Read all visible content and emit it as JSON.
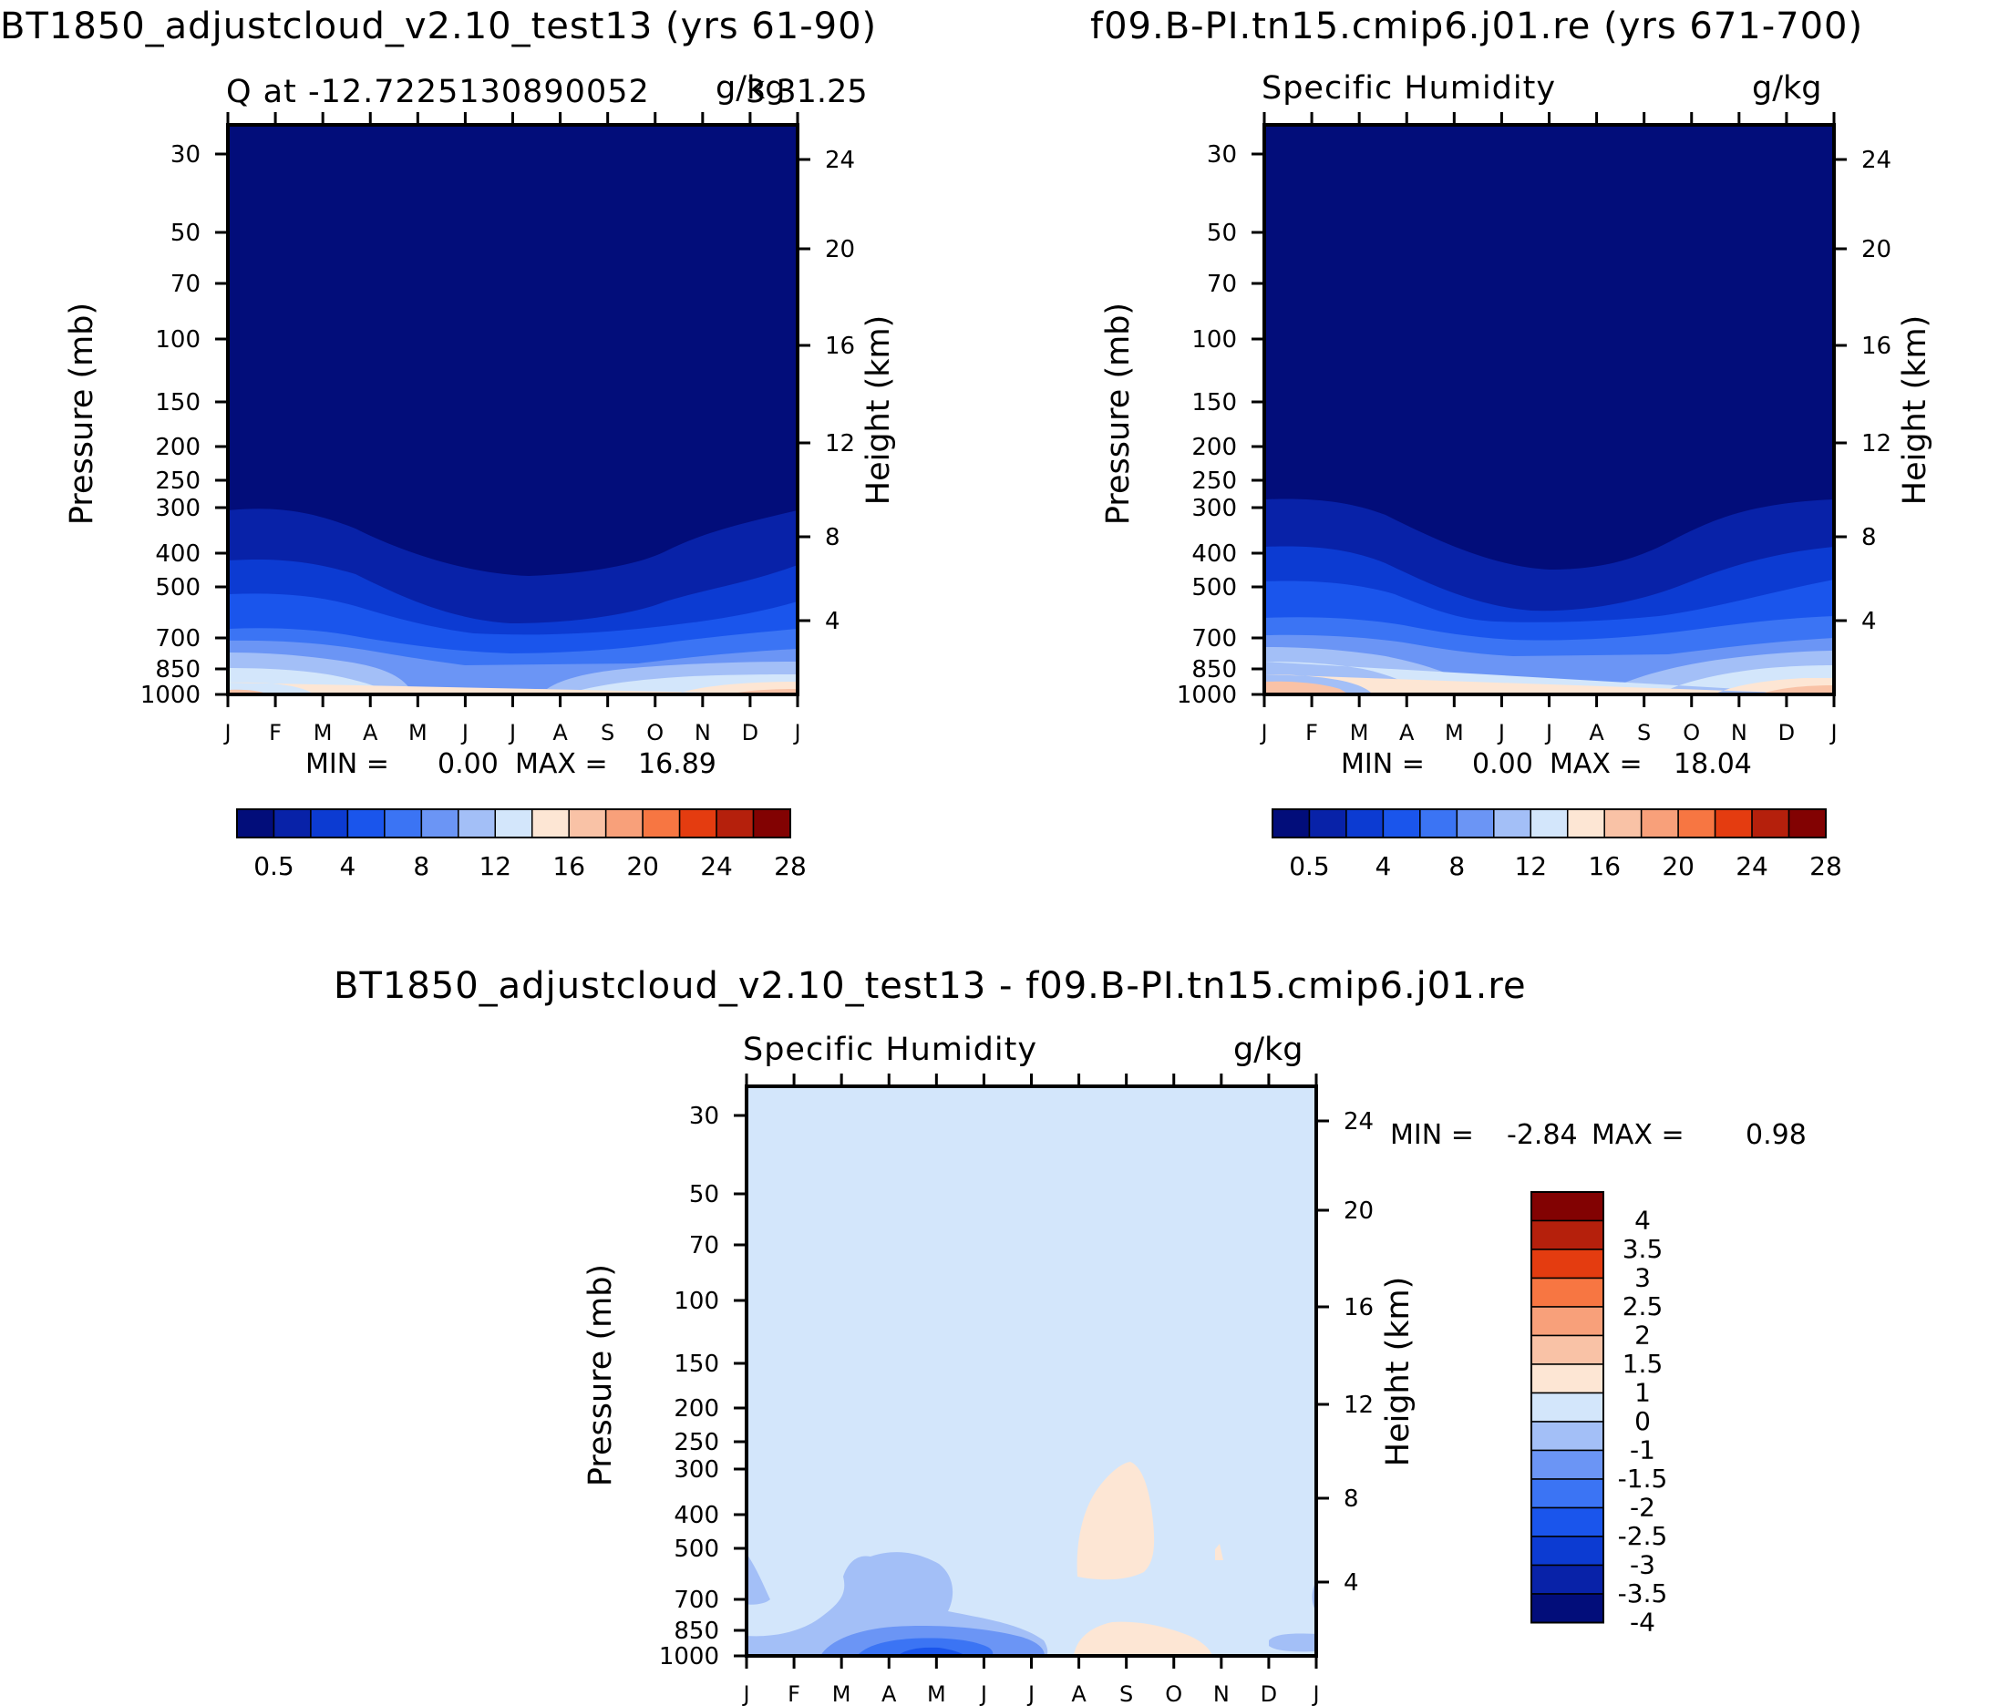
{
  "chart_data": [
    {
      "type": "heatmap",
      "panel_title": "BT1850_adjustcloud_v2.10_test13 (yrs 61-90)",
      "left_label": "Q at -12.722513089005 23 g/kg 31.25",
      "left_label_overlap": "g/kg",
      "left_label_main": "Q at -12.7225130890052",
      "left_label_tail": "3 31.25",
      "units": "g/kg",
      "ylabel": "Pressure (mb)",
      "y2label": "Height (km)",
      "xticks": [
        "J",
        "F",
        "M",
        "A",
        "M",
        "J",
        "J",
        "A",
        "S",
        "O",
        "N",
        "D",
        "J"
      ],
      "pressure_ticks": [
        "30",
        "50",
        "70",
        "100",
        "150",
        "200",
        "250",
        "300",
        "400",
        "500",
        "700",
        "850",
        "1000"
      ],
      "height_ticks": [
        "24",
        "20",
        "16",
        "12",
        "8",
        "4"
      ],
      "min_label": "MIN =",
      "min_value": "0.00",
      "max_label": "MAX =",
      "max_value": "16.89",
      "colorbar_labels": [
        "0.5",
        "4",
        "8",
        "12",
        "16",
        "20",
        "24",
        "28"
      ],
      "contour_levels": [
        0.5,
        2,
        4,
        6,
        8,
        10,
        12,
        14,
        16,
        18,
        20,
        22,
        24,
        26,
        28
      ],
      "seasonal_boundary_pressure_mb": {
        "months": [
          "J",
          "F",
          "M",
          "A",
          "M",
          "J",
          "J",
          "A",
          "S",
          "O",
          "N",
          "D",
          "J"
        ],
        "q_0p5": [
          310,
          310,
          330,
          390,
          440,
          470,
          480,
          460,
          450,
          400,
          340,
          320,
          310
        ],
        "q_2": [
          430,
          430,
          460,
          520,
          600,
          670,
          680,
          650,
          620,
          540,
          470,
          440,
          430
        ]
      }
    },
    {
      "type": "heatmap",
      "panel_title": "f09.B-PI.tn15.cmip6.j01.re (yrs 671-700)",
      "left_label": "Specific Humidity",
      "units": "g/kg",
      "ylabel": "Pressure (mb)",
      "y2label": "Height (km)",
      "xticks": [
        "J",
        "F",
        "M",
        "A",
        "M",
        "J",
        "J",
        "A",
        "S",
        "O",
        "N",
        "D",
        "J"
      ],
      "pressure_ticks": [
        "30",
        "50",
        "70",
        "100",
        "150",
        "200",
        "250",
        "300",
        "400",
        "500",
        "700",
        "850",
        "1000"
      ],
      "height_ticks": [
        "24",
        "20",
        "16",
        "12",
        "8",
        "4"
      ],
      "min_label": "MIN =",
      "min_value": "0.00",
      "max_label": "MAX =",
      "max_value": "18.04",
      "colorbar_labels": [
        "0.5",
        "4",
        "8",
        "12",
        "16",
        "20",
        "24",
        "28"
      ],
      "contour_levels": [
        0.5,
        2,
        4,
        6,
        8,
        10,
        12,
        14,
        16,
        18,
        20,
        22,
        24,
        26,
        28
      ]
    },
    {
      "type": "heatmap",
      "panel_title": "BT1850_adjustcloud_v2.10_test13 - f09.B-PI.tn15.cmip6.j01.re",
      "left_label": "Specific Humidity",
      "units": "g/kg",
      "ylabel": "Pressure (mb)",
      "y2label": "Height (km)",
      "xticks": [
        "J",
        "F",
        "M",
        "A",
        "M",
        "J",
        "J",
        "A",
        "S",
        "O",
        "N",
        "D",
        "J"
      ],
      "pressure_ticks": [
        "30",
        "50",
        "70",
        "100",
        "150",
        "200",
        "250",
        "300",
        "400",
        "500",
        "700",
        "850",
        "1000"
      ],
      "height_ticks": [
        "24",
        "20",
        "16",
        "12",
        "8",
        "4"
      ],
      "min_label": "MIN =",
      "min_value": "-2.84",
      "max_label": "MAX =",
      "max_value": "0.98",
      "colorbar_labels": [
        "4",
        "3.5",
        "3",
        "2.5",
        "2",
        "1.5",
        "1",
        "0",
        "-1",
        "-1.5",
        "-2",
        "-2.5",
        "-3",
        "-3.5",
        "-4"
      ],
      "contour_levels": [
        -4,
        -3.5,
        -3,
        -2.5,
        -2,
        -1.5,
        -1,
        0,
        1,
        1.5,
        2,
        2.5,
        3,
        3.5,
        4
      ]
    }
  ],
  "colors": {
    "abs_scale": [
      "#020d7a",
      "#0822a8",
      "#0c3bd2",
      "#1a55ec",
      "#3b74f4",
      "#6b95f5",
      "#a3bff7",
      "#d3e6fb",
      "#fde6d4",
      "#f9c2a6",
      "#f8a07a",
      "#f77642",
      "#e43c10",
      "#b5200c",
      "#820202"
    ],
    "diff_scale": [
      "#820202",
      "#b5200c",
      "#e43c10",
      "#f77642",
      "#f8a07a",
      "#f9c2a6",
      "#fde6d4",
      "#d3e6fb",
      "#a3bff7",
      "#6b95f5",
      "#3b74f4",
      "#1a55ec",
      "#0c3bd2",
      "#0822a8",
      "#020d7a"
    ]
  }
}
